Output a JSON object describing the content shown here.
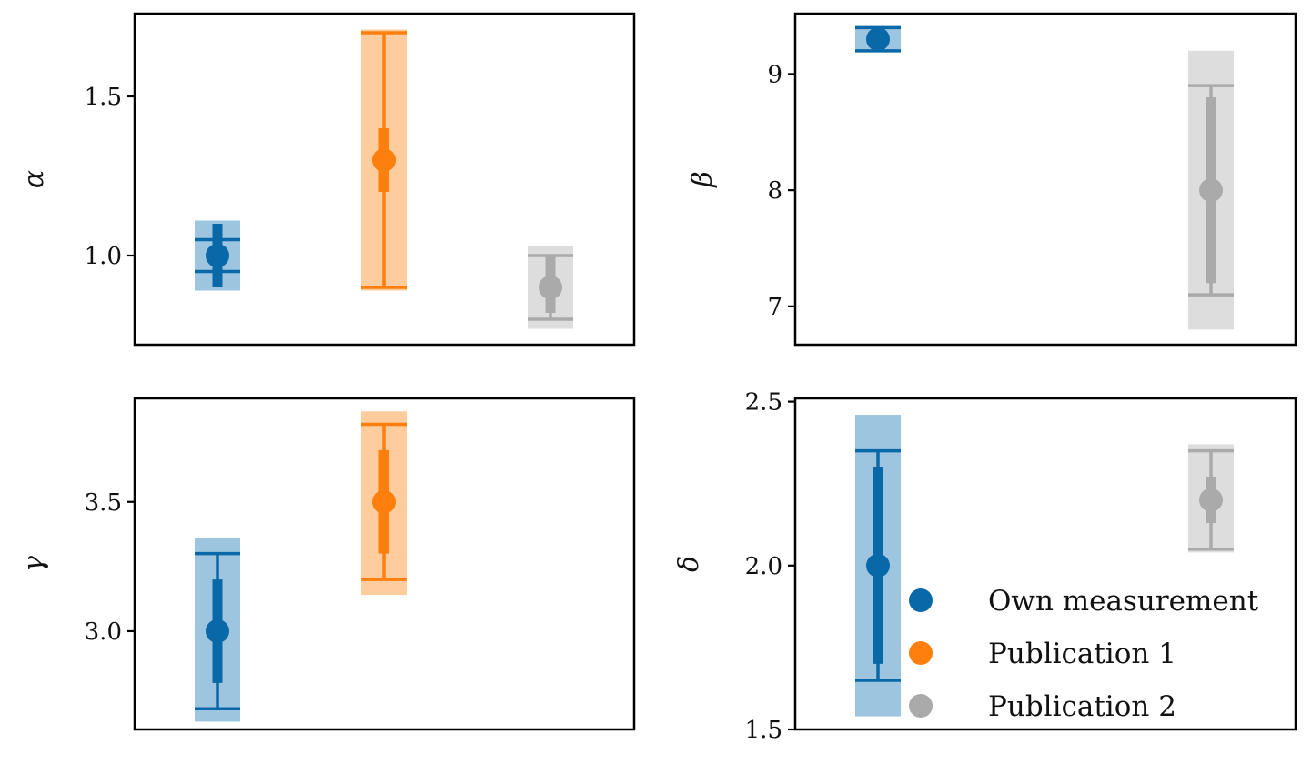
{
  "chart_data": [
    {
      "type": "errorbar",
      "ylabel": "α",
      "ylim": [
        0.72,
        1.76
      ],
      "yticks": [
        1.0,
        1.5
      ],
      "tick_labels": [
        "1.0",
        "1.5"
      ],
      "x": [
        0,
        1,
        2
      ],
      "series": [
        {
          "name": "Own measurement",
          "y": 1.0,
          "stat_err": [
            0.1,
            0.1
          ],
          "sys_err": [
            0.05,
            0.05
          ],
          "band": [
            0.89,
            1.11
          ]
        },
        {
          "name": "Publication 1",
          "y": 1.3,
          "stat_err": [
            0.1,
            0.1
          ],
          "sys_err": [
            0.4,
            0.4
          ],
          "band": [
            0.89,
            1.71
          ]
        },
        {
          "name": "Publication 2",
          "y": 0.9,
          "stat_err": [
            0.08,
            0.1
          ],
          "sys_err": [
            0.1,
            0.1
          ],
          "band": [
            0.77,
            1.03
          ]
        }
      ]
    },
    {
      "type": "errorbar",
      "ylabel": "β",
      "ylim": [
        6.67,
        9.52
      ],
      "yticks": [
        7,
        8,
        9
      ],
      "tick_labels": [
        "7",
        "8",
        "9"
      ],
      "x": [
        0,
        1,
        2
      ],
      "series": [
        {
          "name": "Own measurement",
          "y": 9.3,
          "stat_err": [
            0.1,
            0.1
          ],
          "sys_err": [
            0.1,
            0.1
          ],
          "band": [
            9.2,
            9.4
          ]
        },
        {
          "name": "Publication 2",
          "y": 8.0,
          "stat_err": [
            0.8,
            0.8
          ],
          "sys_err": [
            0.9,
            0.9
          ],
          "band": [
            6.8,
            9.2
          ]
        }
      ]
    },
    {
      "type": "errorbar",
      "ylabel": "γ",
      "ylim": [
        2.62,
        3.9
      ],
      "yticks": [
        3.0,
        3.5
      ],
      "tick_labels": [
        "3.0",
        "3.5"
      ],
      "x": [
        0,
        1,
        2
      ],
      "series": [
        {
          "name": "Own measurement",
          "y": 3.0,
          "stat_err": [
            0.2,
            0.2
          ],
          "sys_err": [
            0.3,
            0.3
          ],
          "band": [
            2.65,
            3.36
          ]
        },
        {
          "name": "Publication 1",
          "y": 3.5,
          "stat_err": [
            0.2,
            0.2
          ],
          "sys_err": [
            0.3,
            0.3
          ],
          "band": [
            3.14,
            3.85
          ]
        }
      ]
    },
    {
      "type": "errorbar",
      "ylabel": "δ",
      "ylim": [
        1.5,
        2.51
      ],
      "yticks": [
        1.5,
        2.0,
        2.5
      ],
      "tick_labels": [
        "1.5",
        "2.0",
        "2.5"
      ],
      "x": [
        0,
        1,
        2
      ],
      "legend": {
        "placement": "lower-right",
        "entries": [
          "Own measurement",
          "Publication 1",
          "Publication 2"
        ]
      },
      "series": [
        {
          "name": "Own measurement",
          "y": 2.0,
          "stat_err": [
            0.3,
            0.3
          ],
          "sys_err": [
            0.35,
            0.35
          ],
          "band": [
            1.54,
            2.46
          ]
        },
        {
          "name": "Publication 2",
          "y": 2.2,
          "stat_err": [
            0.07,
            0.07
          ],
          "sys_err": [
            0.15,
            0.15
          ],
          "band": [
            2.04,
            2.37
          ]
        }
      ]
    }
  ],
  "colors": {
    "Own measurement": "#0868a8",
    "Publication 1": "#ff7f0e",
    "Publication 2": "#aaaaaa"
  },
  "band_colors": {
    "Own measurement": "#9ec5df",
    "Publication 1": "#ffcc9e",
    "Publication 2": "#dddddd"
  }
}
